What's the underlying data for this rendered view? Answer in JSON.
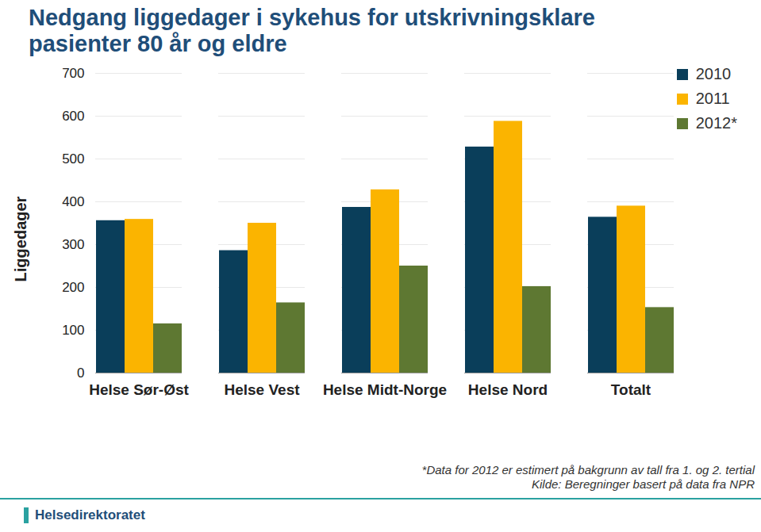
{
  "chart_data": {
    "type": "bar",
    "title": "Nedgang liggedager i sykehus for utskrivningsklare pasienter 80 år og eldre",
    "y_label": "Liggedager",
    "categories": [
      "Helse Sør-Øst",
      "Helse Vest",
      "Helse Midt-Norge",
      "Helse Nord",
      "Totalt"
    ],
    "series": [
      {
        "name": "2010",
        "color": "#0a3e5a",
        "values": [
          356,
          286,
          387,
          528,
          364
        ]
      },
      {
        "name": "2011",
        "color": "#fbb400",
        "values": [
          359,
          350,
          428,
          588,
          390
        ]
      },
      {
        "name": "2012*",
        "color": "#5e7832",
        "values": [
          115,
          164,
          250,
          202,
          153
        ]
      }
    ],
    "ylim": [
      0,
      700
    ],
    "yticks": [
      0,
      100,
      200,
      300,
      400,
      500,
      600,
      700
    ],
    "grid": true,
    "legend": "top-right",
    "notes": [
      "*Data for 2012 er estimert på bakgrunn av tall fra 1. og 2. tertial",
      "Kilde: Beregninger basert på data fra NPR"
    ],
    "brand": "Helsedirektoratet"
  }
}
